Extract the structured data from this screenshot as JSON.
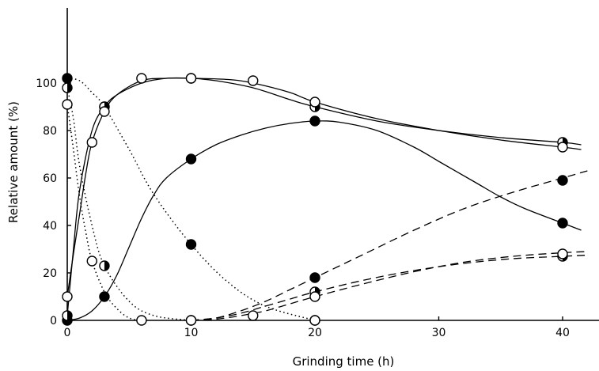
{
  "chart_data": {
    "type": "scatter",
    "title": "",
    "xlabel": "Grinding time (h)",
    "ylabel": "Relative amount (%)",
    "xlim": [
      0,
      45
    ],
    "ylim": [
      0,
      105
    ],
    "x_ticks": [
      0,
      10,
      20,
      30,
      40
    ],
    "y_ticks": [
      0,
      20,
      40,
      60,
      80,
      100
    ],
    "x_tick_labels": [
      "0",
      "10",
      "20",
      "30",
      "40"
    ],
    "y_tick_labels": [
      "0",
      "20",
      "40",
      "60",
      "80",
      "100"
    ],
    "grid": false,
    "legend": "none",
    "series": [
      {
        "marker": "filled",
        "line": "dotted",
        "x": [
          0,
          3,
          10,
          20
        ],
        "y": [
          102,
          90,
          32,
          0
        ],
        "curve_x": [
          0,
          1,
          2,
          3,
          5,
          7,
          10,
          13,
          16,
          20
        ],
        "curve_y": [
          102,
          101,
          96,
          90,
          72,
          53,
          32,
          16,
          6,
          0
        ]
      },
      {
        "marker": "half",
        "line": "dotted",
        "x": [
          0,
          3,
          10
        ],
        "y": [
          98,
          23,
          0
        ],
        "curve_x": [
          0,
          0.5,
          1,
          2,
          3,
          5,
          7,
          10
        ],
        "curve_y": [
          98,
          85,
          65,
          40,
          23,
          8,
          2,
          0
        ]
      },
      {
        "marker": "open",
        "line": "dotted",
        "x": [
          0,
          2,
          6,
          10,
          15,
          20
        ],
        "y": [
          91,
          25,
          0,
          0,
          2,
          0
        ],
        "curve_x": [
          0,
          0.5,
          1,
          1.5,
          2,
          3,
          4,
          5,
          6
        ],
        "curve_y": [
          91,
          72,
          52,
          37,
          25,
          12,
          5,
          1,
          0
        ]
      },
      {
        "marker": "filled",
        "line": "solid",
        "x": [
          0,
          3,
          10,
          20,
          40
        ],
        "y": [
          0,
          10,
          68,
          84,
          41
        ],
        "curve_x": [
          0,
          1,
          2,
          3,
          4,
          5,
          6,
          7,
          8,
          10,
          12,
          14,
          16,
          18,
          20,
          22,
          25,
          28,
          30,
          33,
          35,
          37,
          40,
          41.5
        ],
        "curve_y": [
          0,
          1,
          4,
          10,
          19,
          31,
          43,
          53,
          60,
          68,
          74,
          78,
          81,
          83,
          84,
          83.5,
          80,
          73,
          67,
          58,
          52,
          47,
          41,
          38
        ]
      },
      {
        "marker": "half",
        "line": "solid",
        "x": [
          0,
          3,
          10,
          20,
          40
        ],
        "y": [
          2,
          90,
          102,
          90,
          75
        ],
        "curve_x": [
          0,
          0.5,
          1,
          2,
          3,
          4,
          6,
          8,
          10,
          12,
          15,
          18,
          20,
          25,
          30,
          35,
          40,
          41.5
        ],
        "curve_y": [
          2,
          30,
          55,
          80,
          90,
          95,
          100,
          102,
          102,
          101,
          98,
          93,
          90,
          84,
          80,
          77,
          75,
          74
        ]
      },
      {
        "marker": "open",
        "line": "solid",
        "x": [
          0,
          2,
          3,
          6,
          10,
          15,
          20,
          40
        ],
        "y": [
          10,
          75,
          88,
          102,
          102,
          101,
          92,
          73
        ],
        "curve_x": [
          0,
          0.5,
          1,
          1.5,
          2,
          3,
          4,
          6,
          8,
          10,
          13,
          15,
          18,
          20,
          25,
          30,
          35,
          40,
          41.5
        ],
        "curve_y": [
          10,
          28,
          45,
          62,
          75,
          88,
          95,
          101,
          102,
          102,
          101.5,
          100,
          96,
          92,
          85,
          80,
          76,
          73,
          72
        ]
      },
      {
        "marker": "filled",
        "line": "dashed",
        "x": [
          20,
          40
        ],
        "y": [
          18,
          59
        ],
        "curve_x": [
          10,
          12,
          14,
          16,
          18,
          20,
          24,
          28,
          32,
          36,
          40,
          42
        ],
        "curve_y": [
          0,
          1,
          4,
          8,
          13,
          18,
          28,
          38,
          47,
          54,
          60,
          63
        ]
      },
      {
        "marker": "half",
        "line": "dashed",
        "x": [
          20,
          40
        ],
        "y": [
          12,
          27
        ],
        "curve_x": [
          10,
          12,
          14,
          16,
          18,
          20,
          24,
          28,
          32,
          36,
          40,
          42
        ],
        "curve_y": [
          0,
          1,
          3,
          6,
          9,
          12,
          17,
          21,
          24,
          26,
          27,
          27.5
        ]
      },
      {
        "marker": "open",
        "line": "dashed",
        "x": [
          20,
          40
        ],
        "y": [
          10,
          28
        ],
        "curve_x": [
          10,
          12,
          14,
          16,
          18,
          20,
          24,
          28,
          32,
          36,
          40,
          42
        ],
        "curve_y": [
          0,
          0.5,
          2,
          4,
          7,
          10,
          15.5,
          20.5,
          24.5,
          27,
          28.5,
          29
        ]
      }
    ]
  }
}
